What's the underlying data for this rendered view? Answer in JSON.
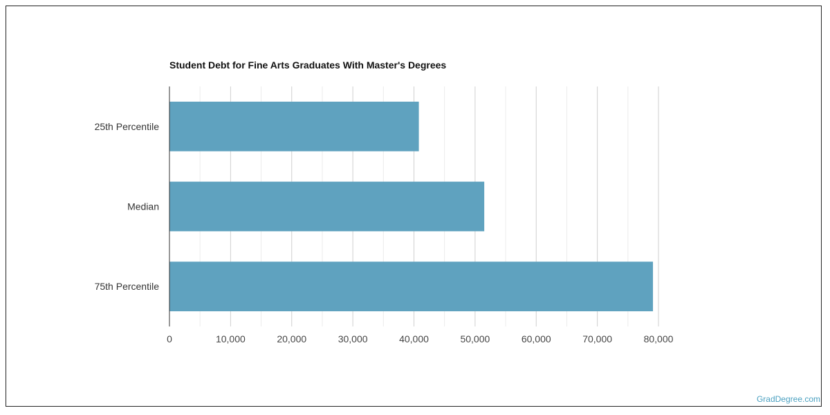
{
  "chart_data": {
    "type": "bar",
    "orientation": "horizontal",
    "title": "Student Debt for Fine Arts Graduates With Master's Degrees",
    "categories": [
      "25th Percentile",
      "Median",
      "75th Percentile"
    ],
    "values": [
      40800,
      51500,
      79100
    ],
    "xlim": [
      0,
      80000
    ],
    "xticks": [
      0,
      10000,
      20000,
      30000,
      40000,
      50000,
      60000,
      70000,
      80000
    ],
    "xtick_labels": [
      "0",
      "10,000",
      "20,000",
      "30,000",
      "40,000",
      "50,000",
      "60,000",
      "70,000",
      "80,000"
    ],
    "grid": true,
    "bar_color": "#5fa2bf"
  },
  "watermark": "GradDegree.com"
}
